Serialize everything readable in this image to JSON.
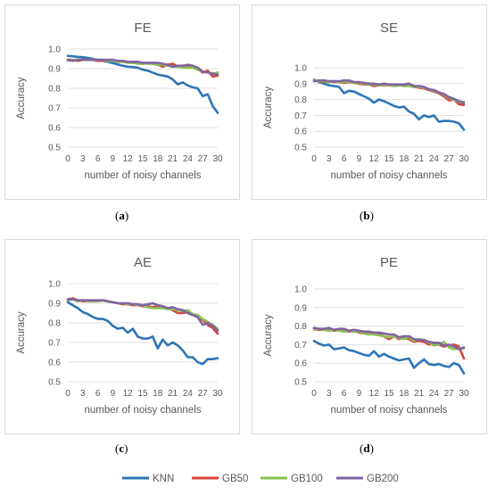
{
  "legend": {
    "items": [
      {
        "name": "KNN",
        "color": "#2E75B6"
      },
      {
        "name": "GB50",
        "color": "#D9423C"
      },
      {
        "name": "GB100",
        "color": "#8CC152"
      },
      {
        "name": "GB200",
        "color": "#8064A2"
      }
    ]
  },
  "chart_data": [
    {
      "type": "line",
      "title": "FE",
      "panel_label": "a",
      "xlabel": "number of noisy channels",
      "ylabel": "Accuracy",
      "xlim": [
        0,
        30
      ],
      "ylim": [
        0.5,
        1.0
      ],
      "xticks": [
        0,
        3,
        6,
        9,
        12,
        15,
        18,
        21,
        24,
        27,
        30
      ],
      "yticks": [
        "0.5",
        "0.6",
        "0.7",
        "0.8",
        "0.9",
        "1.0"
      ],
      "grid": true,
      "x": [
        0,
        1,
        2,
        3,
        4,
        5,
        6,
        7,
        8,
        9,
        10,
        11,
        12,
        13,
        14,
        15,
        16,
        17,
        18,
        19,
        20,
        21,
        22,
        23,
        24,
        25,
        26,
        27,
        28,
        29,
        30
      ],
      "series": [
        {
          "name": "KNN",
          "color": "#2E75B6",
          "values": [
            0.965,
            0.963,
            0.96,
            0.958,
            0.955,
            0.95,
            0.945,
            0.94,
            0.935,
            0.928,
            0.922,
            0.915,
            0.91,
            0.908,
            0.905,
            0.895,
            0.89,
            0.88,
            0.87,
            0.865,
            0.86,
            0.845,
            0.82,
            0.83,
            0.815,
            0.805,
            0.8,
            0.76,
            0.77,
            0.71,
            0.675
          ]
        },
        {
          "name": "GB50",
          "color": "#D9423C",
          "values": [
            0.945,
            0.945,
            0.94,
            0.945,
            0.945,
            0.945,
            0.94,
            0.94,
            0.94,
            0.94,
            0.935,
            0.935,
            0.935,
            0.93,
            0.93,
            0.925,
            0.93,
            0.925,
            0.92,
            0.91,
            0.92,
            0.925,
            0.91,
            0.915,
            0.915,
            0.91,
            0.9,
            0.88,
            0.89,
            0.86,
            0.865
          ]
        },
        {
          "name": "GB100",
          "color": "#8CC152",
          "values": [
            0.94,
            0.945,
            0.945,
            0.945,
            0.945,
            0.945,
            0.945,
            0.945,
            0.94,
            0.94,
            0.935,
            0.935,
            0.93,
            0.93,
            0.925,
            0.925,
            0.925,
            0.925,
            0.92,
            0.92,
            0.915,
            0.91,
            0.91,
            0.905,
            0.905,
            0.905,
            0.895,
            0.885,
            0.88,
            0.875,
            0.88
          ]
        },
        {
          "name": "GB200",
          "color": "#8064A2",
          "values": [
            0.945,
            0.94,
            0.945,
            0.945,
            0.945,
            0.945,
            0.945,
            0.945,
            0.945,
            0.945,
            0.94,
            0.94,
            0.935,
            0.935,
            0.935,
            0.93,
            0.93,
            0.93,
            0.93,
            0.925,
            0.92,
            0.91,
            0.915,
            0.915,
            0.92,
            0.915,
            0.905,
            0.885,
            0.88,
            0.875,
            0.87
          ]
        }
      ]
    },
    {
      "type": "line",
      "title": "SE",
      "panel_label": "b",
      "xlabel": "number of noisy channels",
      "ylabel": "Accuracy",
      "xlim": [
        0,
        30
      ],
      "ylim": [
        0.5,
        1.0
      ],
      "xticks": [
        0,
        3,
        6,
        9,
        12,
        15,
        18,
        21,
        24,
        27,
        30
      ],
      "yticks": [
        "0.5",
        "0.6",
        "0.7",
        "0.8",
        "0.9",
        "1.0"
      ],
      "grid": true,
      "x": [
        0,
        1,
        2,
        3,
        4,
        5,
        6,
        7,
        8,
        9,
        10,
        11,
        12,
        13,
        14,
        15,
        16,
        17,
        18,
        19,
        20,
        21,
        22,
        23,
        24,
        25,
        26,
        27,
        28,
        29,
        30
      ],
      "series": [
        {
          "name": "KNN",
          "color": "#2E75B6",
          "values": [
            0.925,
            0.91,
            0.9,
            0.89,
            0.885,
            0.88,
            0.84,
            0.855,
            0.85,
            0.835,
            0.82,
            0.805,
            0.78,
            0.8,
            0.79,
            0.775,
            0.76,
            0.75,
            0.755,
            0.725,
            0.71,
            0.675,
            0.7,
            0.69,
            0.7,
            0.66,
            0.665,
            0.665,
            0.66,
            0.65,
            0.61
          ]
        },
        {
          "name": "GB50",
          "color": "#D9423C",
          "values": [
            0.92,
            0.915,
            0.91,
            0.915,
            0.91,
            0.91,
            0.905,
            0.91,
            0.905,
            0.9,
            0.895,
            0.895,
            0.885,
            0.89,
            0.89,
            0.89,
            0.885,
            0.89,
            0.885,
            0.89,
            0.88,
            0.875,
            0.87,
            0.86,
            0.85,
            0.84,
            0.82,
            0.795,
            0.8,
            0.77,
            0.765
          ]
        },
        {
          "name": "GB100",
          "color": "#8CC152",
          "values": [
            0.92,
            0.915,
            0.915,
            0.91,
            0.915,
            0.91,
            0.91,
            0.915,
            0.905,
            0.905,
            0.9,
            0.895,
            0.895,
            0.89,
            0.895,
            0.89,
            0.885,
            0.89,
            0.885,
            0.885,
            0.88,
            0.88,
            0.875,
            0.865,
            0.855,
            0.845,
            0.83,
            0.81,
            0.8,
            0.785,
            0.785
          ]
        },
        {
          "name": "GB200",
          "color": "#8064A2",
          "values": [
            0.915,
            0.92,
            0.92,
            0.915,
            0.915,
            0.915,
            0.92,
            0.92,
            0.91,
            0.91,
            0.905,
            0.9,
            0.9,
            0.895,
            0.9,
            0.895,
            0.895,
            0.895,
            0.895,
            0.9,
            0.885,
            0.885,
            0.88,
            0.865,
            0.86,
            0.845,
            0.835,
            0.815,
            0.805,
            0.79,
            0.78
          ]
        }
      ]
    },
    {
      "type": "line",
      "title": "AE",
      "panel_label": "c",
      "xlabel": "number of noisy channels",
      "ylabel": "Accuracy",
      "xlim": [
        0,
        30
      ],
      "ylim": [
        0.5,
        1.0
      ],
      "xticks": [
        0,
        3,
        6,
        9,
        12,
        15,
        18,
        21,
        24,
        27,
        30
      ],
      "yticks": [
        "0.5",
        "0.6",
        "0.7",
        "0.8",
        "0.9",
        "1.0"
      ],
      "grid": true,
      "x": [
        0,
        1,
        2,
        3,
        4,
        5,
        6,
        7,
        8,
        9,
        10,
        11,
        12,
        13,
        14,
        15,
        16,
        17,
        18,
        19,
        20,
        21,
        22,
        23,
        24,
        25,
        26,
        27,
        28,
        29,
        30
      ],
      "series": [
        {
          "name": "KNN",
          "color": "#2E75B6",
          "values": [
            0.905,
            0.89,
            0.875,
            0.855,
            0.845,
            0.83,
            0.82,
            0.82,
            0.81,
            0.785,
            0.77,
            0.775,
            0.75,
            0.77,
            0.73,
            0.72,
            0.72,
            0.73,
            0.67,
            0.715,
            0.685,
            0.7,
            0.685,
            0.66,
            0.625,
            0.625,
            0.6,
            0.59,
            0.615,
            0.615,
            0.62
          ]
        },
        {
          "name": "GB50",
          "color": "#D9423C",
          "values": [
            0.92,
            0.925,
            0.915,
            0.91,
            0.91,
            0.91,
            0.91,
            0.915,
            0.91,
            0.905,
            0.9,
            0.895,
            0.895,
            0.89,
            0.89,
            0.885,
            0.885,
            0.88,
            0.885,
            0.88,
            0.875,
            0.865,
            0.85,
            0.85,
            0.855,
            0.84,
            0.83,
            0.815,
            0.79,
            0.775,
            0.745
          ]
        },
        {
          "name": "GB100",
          "color": "#8CC152",
          "values": [
            0.915,
            0.92,
            0.91,
            0.915,
            0.91,
            0.91,
            0.91,
            0.915,
            0.91,
            0.905,
            0.9,
            0.9,
            0.895,
            0.895,
            0.89,
            0.89,
            0.88,
            0.875,
            0.875,
            0.875,
            0.87,
            0.87,
            0.865,
            0.86,
            0.865,
            0.845,
            0.84,
            0.82,
            0.805,
            0.79,
            0.77
          ]
        },
        {
          "name": "GB200",
          "color": "#8064A2",
          "values": [
            0.92,
            0.92,
            0.915,
            0.915,
            0.915,
            0.915,
            0.915,
            0.915,
            0.91,
            0.905,
            0.9,
            0.9,
            0.9,
            0.895,
            0.895,
            0.89,
            0.895,
            0.9,
            0.89,
            0.885,
            0.875,
            0.88,
            0.87,
            0.865,
            0.85,
            0.84,
            0.83,
            0.79,
            0.8,
            0.785,
            0.76
          ]
        }
      ]
    },
    {
      "type": "line",
      "title": "PE",
      "panel_label": "d",
      "xlabel": "number of noisy channels",
      "ylabel": "Accuracy",
      "xlim": [
        0,
        30
      ],
      "ylim": [
        0.5,
        1.0
      ],
      "xticks": [
        0,
        3,
        6,
        9,
        12,
        15,
        18,
        21,
        24,
        27,
        30
      ],
      "yticks": [
        "0.5",
        "0.6",
        "0.7",
        "0.8",
        "0.9",
        "1.0"
      ],
      "grid": true,
      "x": [
        0,
        1,
        2,
        3,
        4,
        5,
        6,
        7,
        8,
        9,
        10,
        11,
        12,
        13,
        14,
        15,
        16,
        17,
        18,
        19,
        20,
        21,
        22,
        23,
        24,
        25,
        26,
        27,
        28,
        29,
        30
      ],
      "series": [
        {
          "name": "KNN",
          "color": "#2E75B6",
          "values": [
            0.72,
            0.705,
            0.695,
            0.7,
            0.675,
            0.68,
            0.685,
            0.67,
            0.665,
            0.655,
            0.645,
            0.64,
            0.665,
            0.635,
            0.65,
            0.635,
            0.625,
            0.615,
            0.62,
            0.625,
            0.575,
            0.6,
            0.62,
            0.595,
            0.59,
            0.595,
            0.585,
            0.58,
            0.6,
            0.59,
            0.545
          ]
        },
        {
          "name": "GB50",
          "color": "#D9423C",
          "values": [
            0.785,
            0.78,
            0.78,
            0.785,
            0.775,
            0.78,
            0.775,
            0.77,
            0.775,
            0.765,
            0.76,
            0.765,
            0.76,
            0.755,
            0.745,
            0.73,
            0.745,
            0.73,
            0.735,
            0.73,
            0.715,
            0.72,
            0.715,
            0.7,
            0.705,
            0.7,
            0.69,
            0.695,
            0.7,
            0.69,
            0.625
          ]
        },
        {
          "name": "GB100",
          "color": "#8CC152",
          "values": [
            0.78,
            0.785,
            0.78,
            0.775,
            0.78,
            0.775,
            0.77,
            0.775,
            0.77,
            0.77,
            0.76,
            0.755,
            0.755,
            0.75,
            0.745,
            0.74,
            0.745,
            0.735,
            0.73,
            0.74,
            0.72,
            0.73,
            0.725,
            0.71,
            0.695,
            0.7,
            0.715,
            0.685,
            0.675,
            0.68,
            0.68
          ]
        },
        {
          "name": "GB200",
          "color": "#8064A2",
          "values": [
            0.79,
            0.785,
            0.785,
            0.79,
            0.78,
            0.785,
            0.785,
            0.775,
            0.78,
            0.775,
            0.77,
            0.77,
            0.765,
            0.765,
            0.76,
            0.755,
            0.755,
            0.74,
            0.745,
            0.745,
            0.73,
            0.725,
            0.725,
            0.715,
            0.71,
            0.71,
            0.695,
            0.7,
            0.69,
            0.675,
            0.685
          ]
        }
      ]
    }
  ]
}
